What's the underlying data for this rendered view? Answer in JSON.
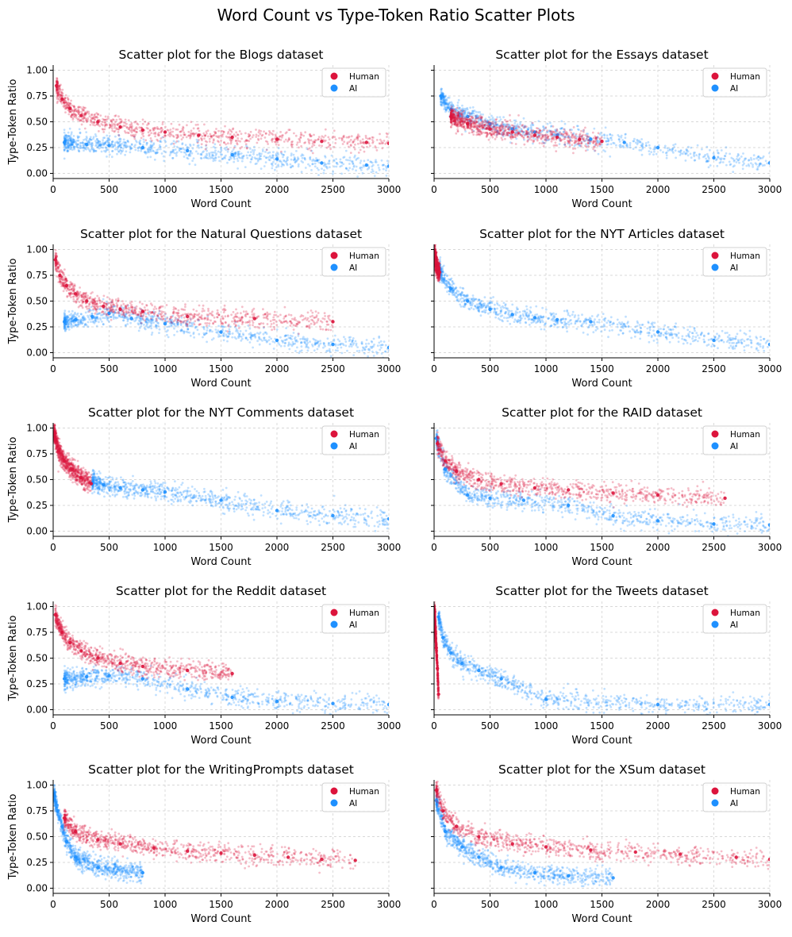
{
  "figure": {
    "title": "Word Count vs Type-Token Ratio Scatter Plots"
  },
  "colors": {
    "human": "#dc143c",
    "ai": "#1e90ff",
    "grid": "#cccccc",
    "axis": "#000000"
  },
  "chart_data": [
    {
      "type": "scatter",
      "title": "Scatter plot for the Blogs dataset",
      "xlabel": "Word Count",
      "ylabel": "Type-Token Ratio",
      "xlim": [
        0,
        3000
      ],
      "ylim": [
        -0.05,
        1.05
      ],
      "xticks": [
        "0",
        "500",
        "1000",
        "1500",
        "2000",
        "2500",
        "3000"
      ],
      "yticks": [
        "0.00",
        "0.25",
        "0.50",
        "0.75",
        "1.00"
      ],
      "grid": true,
      "legend_position": "top-right",
      "series": [
        {
          "name": "Human",
          "color": "#dc143c",
          "x": [
            30,
            80,
            150,
            250,
            400,
            600,
            800,
            1000,
            1300,
            1600,
            2000,
            2400,
            2800,
            3000
          ],
          "y": [
            0.85,
            0.72,
            0.63,
            0.56,
            0.5,
            0.45,
            0.42,
            0.4,
            0.37,
            0.35,
            0.33,
            0.31,
            0.3,
            0.29
          ]
        },
        {
          "name": "AI",
          "color": "#1e90ff",
          "x": [
            100,
            300,
            500,
            800,
            1200,
            1600,
            2000,
            2400,
            2800,
            3000
          ],
          "y": [
            0.3,
            0.28,
            0.27,
            0.25,
            0.22,
            0.18,
            0.14,
            0.1,
            0.08,
            0.07
          ]
        }
      ]
    },
    {
      "type": "scatter",
      "title": "Scatter plot for the Essays dataset",
      "xlabel": "Word Count",
      "ylabel": "",
      "xlim": [
        0,
        3000
      ],
      "ylim": [
        -0.05,
        1.05
      ],
      "xticks": [
        "0",
        "500",
        "1000",
        "1500",
        "2000",
        "2500",
        "3000"
      ],
      "yticks": [],
      "grid": true,
      "legend_position": "top-right",
      "series": [
        {
          "name": "Human",
          "color": "#dc143c",
          "x": [
            150,
            300,
            500,
            700,
            900,
            1100,
            1300,
            1500
          ],
          "y": [
            0.55,
            0.48,
            0.43,
            0.4,
            0.37,
            0.35,
            0.33,
            0.31
          ]
        },
        {
          "name": "AI",
          "color": "#1e90ff",
          "x": [
            60,
            150,
            300,
            500,
            700,
            900,
            1100,
            1400,
            1700,
            2000,
            2500,
            3000
          ],
          "y": [
            0.75,
            0.62,
            0.55,
            0.48,
            0.43,
            0.4,
            0.37,
            0.33,
            0.3,
            0.25,
            0.15,
            0.1
          ]
        }
      ]
    },
    {
      "type": "scatter",
      "title": "Scatter plot for the Natural Questions dataset",
      "xlabel": "Word Count",
      "ylabel": "Type-Token Ratio",
      "xlim": [
        0,
        3000
      ],
      "ylim": [
        -0.05,
        1.05
      ],
      "xticks": [
        "0",
        "500",
        "1000",
        "1500",
        "2000",
        "2500",
        "3000"
      ],
      "yticks": [
        "0.00",
        "0.25",
        "0.50",
        "0.75",
        "1.00"
      ],
      "grid": true,
      "legend_position": "top-right",
      "series": [
        {
          "name": "Human",
          "color": "#dc143c",
          "x": [
            20,
            60,
            120,
            200,
            300,
            450,
            600,
            800,
            1200,
            1800,
            2500
          ],
          "y": [
            0.9,
            0.75,
            0.65,
            0.57,
            0.5,
            0.45,
            0.42,
            0.4,
            0.35,
            0.33,
            0.3
          ]
        },
        {
          "name": "AI",
          "color": "#1e90ff",
          "x": [
            100,
            200,
            350,
            500,
            700,
            1000,
            1500,
            2000,
            2500,
            3000
          ],
          "y": [
            0.3,
            0.32,
            0.35,
            0.38,
            0.33,
            0.28,
            0.2,
            0.12,
            0.08,
            0.05
          ]
        }
      ]
    },
    {
      "type": "scatter",
      "title": "Scatter plot for the NYT Articles dataset",
      "xlabel": "Word Count",
      "ylabel": "",
      "xlim": [
        0,
        3000
      ],
      "ylim": [
        -0.05,
        1.05
      ],
      "xticks": [
        "0",
        "500",
        "1000",
        "1500",
        "2000",
        "2500",
        "3000"
      ],
      "yticks": [],
      "grid": true,
      "legend_position": "top-right",
      "series": [
        {
          "name": "Human",
          "color": "#dc143c",
          "x": [
            5,
            15,
            30,
            50
          ],
          "y": [
            0.95,
            0.88,
            0.82,
            0.78
          ]
        },
        {
          "name": "AI",
          "color": "#1e90ff",
          "x": [
            50,
            150,
            300,
            500,
            700,
            900,
            1100,
            1400,
            2000,
            2500,
            3000
          ],
          "y": [
            0.8,
            0.62,
            0.5,
            0.42,
            0.37,
            0.34,
            0.32,
            0.3,
            0.2,
            0.12,
            0.08
          ]
        }
      ]
    },
    {
      "type": "scatter",
      "title": "Scatter plot for the NYT Comments dataset",
      "xlabel": "Word Count",
      "ylabel": "Type-Token Ratio",
      "xlim": [
        0,
        3000
      ],
      "ylim": [
        -0.05,
        1.05
      ],
      "xticks": [
        "0",
        "500",
        "1000",
        "1500",
        "2000",
        "2500",
        "3000"
      ],
      "yticks": [
        "0.00",
        "0.25",
        "0.50",
        "0.75",
        "1.00"
      ],
      "grid": true,
      "legend_position": "top-right",
      "series": [
        {
          "name": "Human",
          "color": "#dc143c",
          "x": [
            10,
            50,
            100,
            170,
            250,
            340
          ],
          "y": [
            0.95,
            0.78,
            0.68,
            0.6,
            0.52,
            0.46
          ]
        },
        {
          "name": "AI",
          "color": "#1e90ff",
          "x": [
            350,
            450,
            600,
            800,
            1000,
            1500,
            2000,
            2500,
            3000
          ],
          "y": [
            0.47,
            0.45,
            0.42,
            0.4,
            0.38,
            0.3,
            0.2,
            0.15,
            0.12
          ]
        }
      ]
    },
    {
      "type": "scatter",
      "title": "Scatter plot for the RAID dataset",
      "xlabel": "Word Count",
      "ylabel": "",
      "xlim": [
        0,
        3000
      ],
      "ylim": [
        -0.05,
        1.05
      ],
      "xticks": [
        "0",
        "500",
        "1000",
        "1500",
        "2000",
        "2500",
        "3000"
      ],
      "yticks": [],
      "grid": true,
      "legend_position": "top-right",
      "series": [
        {
          "name": "Human",
          "color": "#dc143c",
          "x": [
            30,
            100,
            200,
            400,
            600,
            900,
            1200,
            1600,
            2000,
            2600
          ],
          "y": [
            0.85,
            0.68,
            0.58,
            0.5,
            0.46,
            0.42,
            0.4,
            0.37,
            0.35,
            0.32
          ]
        },
        {
          "name": "AI",
          "color": "#1e90ff",
          "x": [
            20,
            100,
            300,
            500,
            800,
            1200,
            1600,
            2000,
            2500,
            3000
          ],
          "y": [
            0.9,
            0.6,
            0.35,
            0.32,
            0.3,
            0.25,
            0.15,
            0.1,
            0.07,
            0.06
          ]
        }
      ]
    },
    {
      "type": "scatter",
      "title": "Scatter plot for the Reddit dataset",
      "xlabel": "Word Count",
      "ylabel": "Type-Token Ratio",
      "xlim": [
        0,
        3000
      ],
      "ylim": [
        -0.05,
        1.05
      ],
      "xticks": [
        "0",
        "500",
        "1000",
        "1500",
        "2000",
        "2500",
        "3000"
      ],
      "yticks": [
        "0.00",
        "0.25",
        "0.50",
        "0.75",
        "1.00"
      ],
      "grid": true,
      "legend_position": "top-right",
      "series": [
        {
          "name": "Human",
          "color": "#dc143c",
          "x": [
            20,
            80,
            150,
            250,
            400,
            600,
            800,
            1200,
            1600
          ],
          "y": [
            0.92,
            0.75,
            0.65,
            0.57,
            0.5,
            0.45,
            0.42,
            0.38,
            0.35
          ]
        },
        {
          "name": "AI",
          "color": "#1e90ff",
          "x": [
            100,
            300,
            500,
            800,
            1200,
            1600,
            2000,
            2500,
            3000
          ],
          "y": [
            0.3,
            0.32,
            0.33,
            0.3,
            0.2,
            0.12,
            0.08,
            0.06,
            0.05
          ]
        }
      ]
    },
    {
      "type": "scatter",
      "title": "Scatter plot for the Tweets dataset",
      "xlabel": "Word Count",
      "ylabel": "",
      "xlim": [
        0,
        3000
      ],
      "ylim": [
        -0.05,
        1.05
      ],
      "xticks": [
        "0",
        "500",
        "1000",
        "1500",
        "2000",
        "2500",
        "3000"
      ],
      "yticks": [],
      "grid": true,
      "legend_position": "top-right",
      "series": [
        {
          "name": "Human",
          "color": "#dc143c",
          "x": [
            5,
            10,
            20,
            30,
            40
          ],
          "y": [
            0.95,
            0.8,
            0.6,
            0.4,
            0.15
          ]
        },
        {
          "name": "AI",
          "color": "#1e90ff",
          "x": [
            40,
            80,
            150,
            250,
            400,
            600,
            1000,
            2000,
            3000
          ],
          "y": [
            0.9,
            0.7,
            0.55,
            0.45,
            0.38,
            0.3,
            0.1,
            0.05,
            0.05
          ]
        }
      ]
    },
    {
      "type": "scatter",
      "title": "Scatter plot for the WritingPrompts dataset",
      "xlabel": "Word Count",
      "ylabel": "Type-Token Ratio",
      "xlim": [
        0,
        3000
      ],
      "ylim": [
        -0.05,
        1.05
      ],
      "xticks": [
        "0",
        "500",
        "1000",
        "1500",
        "2000",
        "2500",
        "3000"
      ],
      "yticks": [
        "0.00",
        "0.25",
        "0.50",
        "0.75",
        "1.00"
      ],
      "grid": true,
      "legend_position": "top-right",
      "series": [
        {
          "name": "Human",
          "color": "#dc143c",
          "x": [
            100,
            200,
            400,
            600,
            900,
            1200,
            1500,
            1800,
            2100,
            2400,
            2700
          ],
          "y": [
            0.68,
            0.55,
            0.47,
            0.43,
            0.39,
            0.36,
            0.34,
            0.32,
            0.3,
            0.28,
            0.27
          ]
        },
        {
          "name": "AI",
          "color": "#1e90ff",
          "x": [
            10,
            40,
            80,
            120,
            200,
            400,
            800
          ],
          "y": [
            0.9,
            0.75,
            0.6,
            0.45,
            0.3,
            0.2,
            0.15
          ]
        }
      ]
    },
    {
      "type": "scatter",
      "title": "Scatter plot for the XSum dataset",
      "xlabel": "Word Count",
      "ylabel": "",
      "xlim": [
        0,
        3000
      ],
      "ylim": [
        -0.05,
        1.05
      ],
      "xticks": [
        "0",
        "500",
        "1000",
        "1500",
        "2000",
        "2500",
        "3000"
      ],
      "yticks": [],
      "grid": true,
      "legend_position": "top-right",
      "series": [
        {
          "name": "Human",
          "color": "#dc143c",
          "x": [
            20,
            80,
            200,
            400,
            700,
            1000,
            1400,
            1800,
            2200,
            2700,
            3000
          ],
          "y": [
            0.95,
            0.75,
            0.6,
            0.5,
            0.43,
            0.4,
            0.37,
            0.35,
            0.33,
            0.3,
            0.28
          ]
        },
        {
          "name": "AI",
          "color": "#1e90ff",
          "x": [
            20,
            100,
            250,
            400,
            600,
            900,
            1200,
            1600
          ],
          "y": [
            0.85,
            0.55,
            0.4,
            0.3,
            0.2,
            0.15,
            0.12,
            0.1
          ]
        }
      ]
    }
  ]
}
